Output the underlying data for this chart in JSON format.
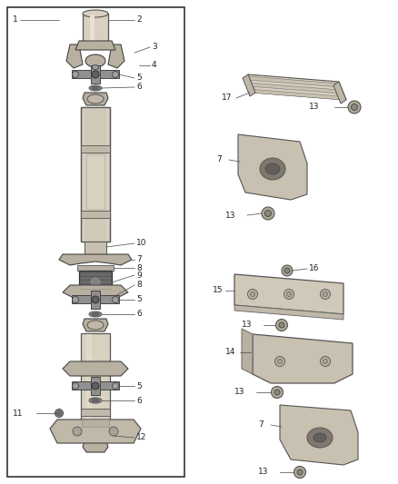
{
  "background_color": "#ffffff",
  "fig_width": 4.38,
  "fig_height": 5.33,
  "dpi": 100,
  "shaft_color": "#d8d0c0",
  "shaft_edge": "#555555",
  "yoke_color": "#b8b0a0",
  "yoke_edge": "#444444",
  "bearing_color": "#606060",
  "bearing_edge": "#333333",
  "cap_color": "#909090",
  "cap_edge": "#444444",
  "washer_color": "#888888",
  "washer_edge": "#555555",
  "mount_color": "#c0b8a8",
  "mount_edge": "#555555",
  "plate_color": "#c8c0b0",
  "plate_edge": "#555555",
  "label_color": "#222222",
  "label_fontsize": 6.5,
  "line_color": "#555555",
  "line_lw": 0.55
}
